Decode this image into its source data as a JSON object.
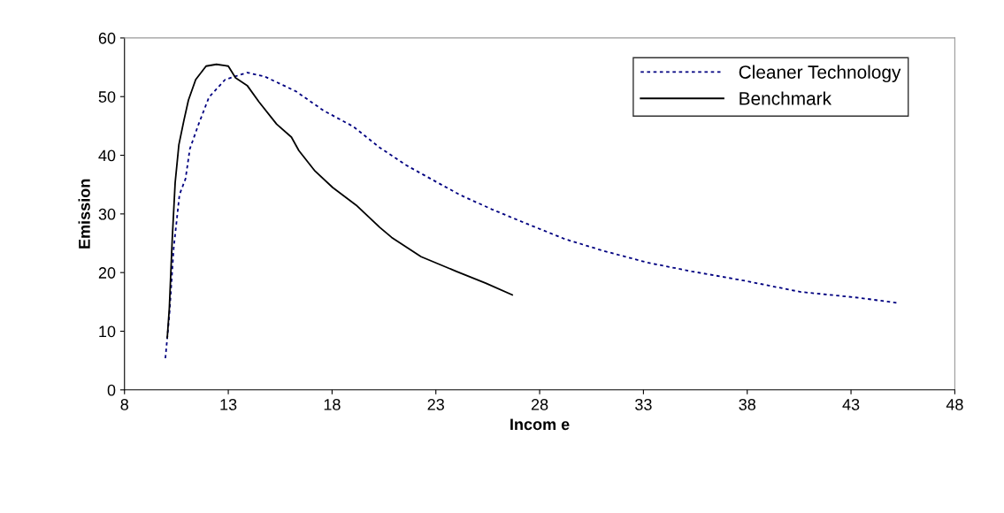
{
  "chart_data": {
    "type": "line",
    "xlabel": "Incom e",
    "ylabel": "Emission",
    "xlim": [
      8,
      48
    ],
    "xticks": [
      8,
      13,
      18,
      23,
      28,
      33,
      38,
      43,
      48
    ],
    "ylim": [
      0,
      60
    ],
    "yticks": [
      0,
      10,
      20,
      30,
      40,
      50,
      60
    ],
    "grid": false,
    "legend": "top right",
    "marker": "none",
    "series": [
      {
        "name": "Cleaner Technology",
        "color": "#000080",
        "line_style": "dashed",
        "x": [
          9.97,
          10.16,
          10.37,
          10.65,
          10.94,
          11.15,
          11.57,
          12.07,
          12.85,
          13.91,
          14.77,
          16.26,
          17.6,
          19.02,
          20.3,
          21.57,
          22.85,
          24.13,
          25.69,
          27.26,
          29.23,
          31.08,
          33.2,
          35.33,
          37.74,
          40.58,
          43.4,
          45.26
        ],
        "values": [
          5.4,
          12.7,
          24.2,
          33.3,
          36.0,
          41.1,
          45.3,
          49.9,
          52.9,
          54.1,
          53.4,
          50.9,
          47.6,
          44.9,
          41.3,
          38.3,
          35.8,
          33.3,
          30.8,
          28.5,
          25.7,
          23.7,
          21.7,
          20.2,
          18.7,
          16.7,
          15.7,
          14.8
        ]
      },
      {
        "name": "Benchmark",
        "color": "#000000",
        "line_style": "solid",
        "x": [
          10.06,
          10.16,
          10.3,
          10.44,
          10.62,
          10.86,
          11.08,
          11.43,
          11.93,
          12.43,
          13.0,
          13.35,
          13.91,
          14.48,
          15.33,
          16.04,
          16.4,
          17.18,
          18.03,
          19.16,
          20.3,
          20.87,
          22.29,
          23.99,
          25.4,
          26.68
        ],
        "values": [
          8.9,
          13.9,
          25.7,
          35.3,
          41.8,
          45.9,
          49.4,
          52.9,
          55.2,
          55.5,
          55.2,
          53.2,
          51.9,
          49.1,
          45.3,
          43.1,
          40.8,
          37.3,
          34.5,
          31.5,
          27.7,
          26.0,
          22.7,
          20.2,
          18.2,
          16.2
        ]
      }
    ]
  }
}
